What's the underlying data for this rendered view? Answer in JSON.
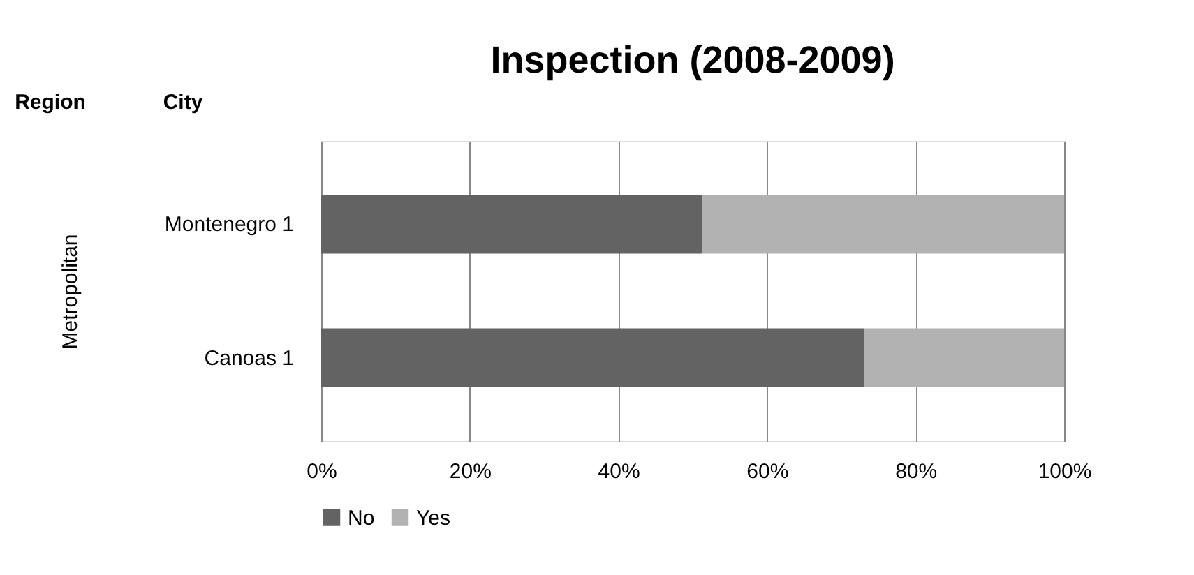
{
  "chart_data": {
    "type": "bar",
    "orientation": "horizontal",
    "stacked": true,
    "title": "Inspection (2008-2009)",
    "ylabel": "Metropolitan",
    "annotations": [
      "Region",
      "City"
    ],
    "categories": [
      "Montenegro 1",
      "Canoas 1"
    ],
    "series": [
      {
        "name": "No",
        "color": "#636363",
        "values": [
          51.3,
          73.1
        ]
      },
      {
        "name": "Yes",
        "color": "#b2b2b2",
        "values": [
          48.7,
          26.9
        ]
      }
    ],
    "xlim": [
      0,
      100
    ],
    "xticks": [
      {
        "value": 0,
        "label": "0%"
      },
      {
        "value": 20,
        "label": "20%"
      },
      {
        "value": 40,
        "label": "40%"
      },
      {
        "value": 60,
        "label": "60%"
      },
      {
        "value": 80,
        "label": "80%"
      },
      {
        "value": 100,
        "label": "100%"
      }
    ],
    "grid": "x",
    "legend": "bottom"
  }
}
